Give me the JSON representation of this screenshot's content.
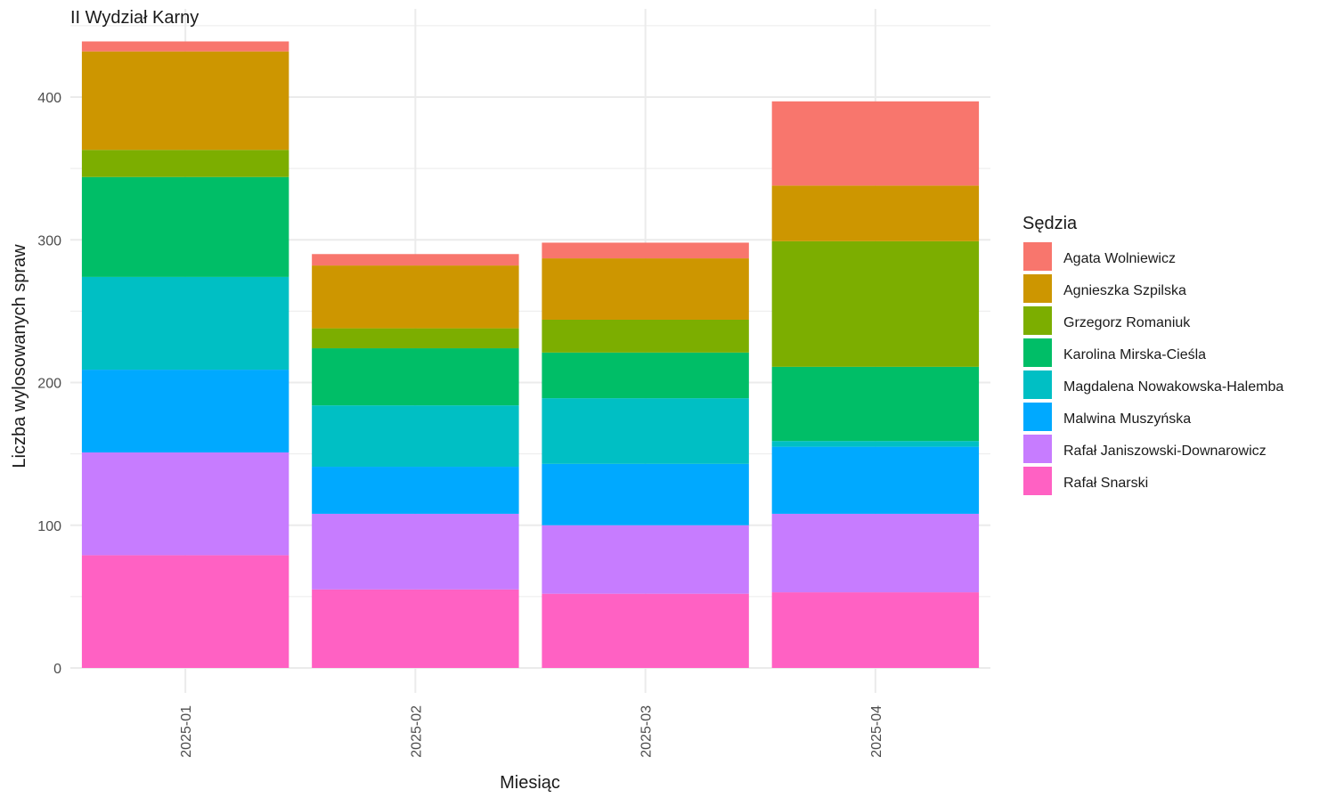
{
  "chart_data": {
    "type": "bar",
    "stacked": true,
    "title": "II Wydział Karny",
    "xlabel": "Miesiąc",
    "ylabel": "Liczba wylosowanych spraw",
    "ylim": [
      0,
      440
    ],
    "yticks": [
      0,
      100,
      200,
      300,
      400
    ],
    "grid": true,
    "legend_title": "Sędzia",
    "legend_position": "right",
    "categories": [
      "2025-01",
      "2025-02",
      "2025-03",
      "2025-04"
    ],
    "series": [
      {
        "name": "Rafał Snarski",
        "color": "#FF61C3",
        "values": [
          79,
          55,
          52,
          53
        ]
      },
      {
        "name": "Rafał Janiszowski-Downarowicz",
        "color": "#C77CFF",
        "values": [
          72,
          53,
          48,
          55
        ]
      },
      {
        "name": "Malwina Muszyńska",
        "color": "#00A9FF",
        "values": [
          58,
          33,
          43,
          47
        ]
      },
      {
        "name": "Magdalena Nowakowska-Halemba",
        "color": "#00BFC4",
        "values": [
          65,
          43,
          46,
          4
        ]
      },
      {
        "name": "Karolina Mirska-Cieśla",
        "color": "#00BE67",
        "values": [
          70,
          40,
          32,
          52
        ]
      },
      {
        "name": "Grzegorz Romaniuk",
        "color": "#7CAE00",
        "values": [
          19,
          14,
          23,
          88
        ]
      },
      {
        "name": "Agnieszka Szpilska",
        "color": "#CD9600",
        "values": [
          69,
          44,
          43,
          39
        ]
      },
      {
        "name": "Agata Wolniewicz",
        "color": "#F8766D",
        "values": [
          7,
          8,
          11,
          59
        ]
      }
    ],
    "legend_order": [
      "Agata Wolniewicz",
      "Agnieszka Szpilska",
      "Grzegorz Romaniuk",
      "Karolina Mirska-Cieśla",
      "Magdalena Nowakowska-Halemba",
      "Malwina Muszyńska",
      "Rafał Janiszowski-Downarowicz",
      "Rafał Snarski"
    ]
  }
}
